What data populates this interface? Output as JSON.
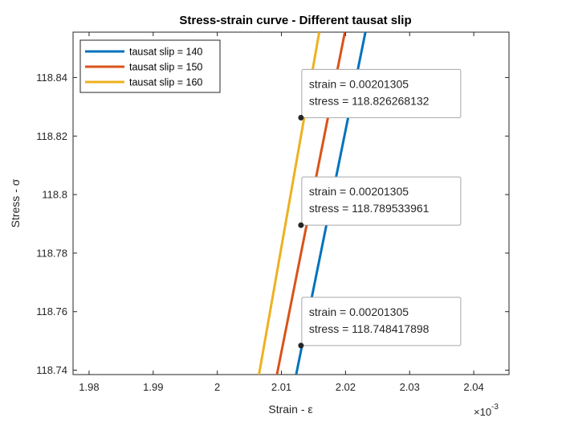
{
  "chart_data": {
    "type": "line",
    "title": "Stress-strain curve - Different tausat slip",
    "xlabel": "Strain - ε",
    "ylabel": "Stress - σ",
    "x_exponent_label": "×10",
    "x_exponent": "-3",
    "xlim": [
      1.9775,
      2.0455
    ],
    "ylim": [
      118.7385,
      118.8555
    ],
    "x_ticks": [
      1.98,
      1.99,
      2.0,
      2.01,
      2.02,
      2.03,
      2.04
    ],
    "x_tick_labels": [
      "1.98",
      "1.99",
      "2",
      "2.01",
      "2.02",
      "2.03",
      "2.04"
    ],
    "y_ticks": [
      118.74,
      118.76,
      118.78,
      118.8,
      118.82,
      118.84
    ],
    "y_tick_labels": [
      "118.74",
      "118.76",
      "118.78",
      "118.8",
      "118.82",
      "118.84"
    ],
    "grid": false,
    "legend_position": "top-left",
    "series": [
      {
        "name": "tausat slip = 140",
        "color": "#0072bd",
        "x": [
          2.0123,
          2.0231
        ],
        "y": [
          118.7385,
          118.8555
        ]
      },
      {
        "name": "tausat slip = 150",
        "color": "#d95319",
        "x": [
          2.0093,
          2.0199
        ],
        "y": [
          118.7385,
          118.8555
        ]
      },
      {
        "name": "tausat slip = 160",
        "color": "#edb120",
        "x": [
          2.0065,
          2.0159
        ],
        "y": [
          118.7385,
          118.8555
        ]
      }
    ],
    "datatips": [
      {
        "x": 2.01305,
        "y": 118.826268132,
        "line1": "strain = 0.00201305",
        "line2": "stress = 118.826268132"
      },
      {
        "x": 2.01305,
        "y": 118.789533961,
        "line1": "strain = 0.00201305",
        "line2": "stress = 118.789533961"
      },
      {
        "x": 2.01305,
        "y": 118.748417898,
        "line1": "strain = 0.00201305",
        "line2": "stress = 118.748417898"
      }
    ]
  }
}
